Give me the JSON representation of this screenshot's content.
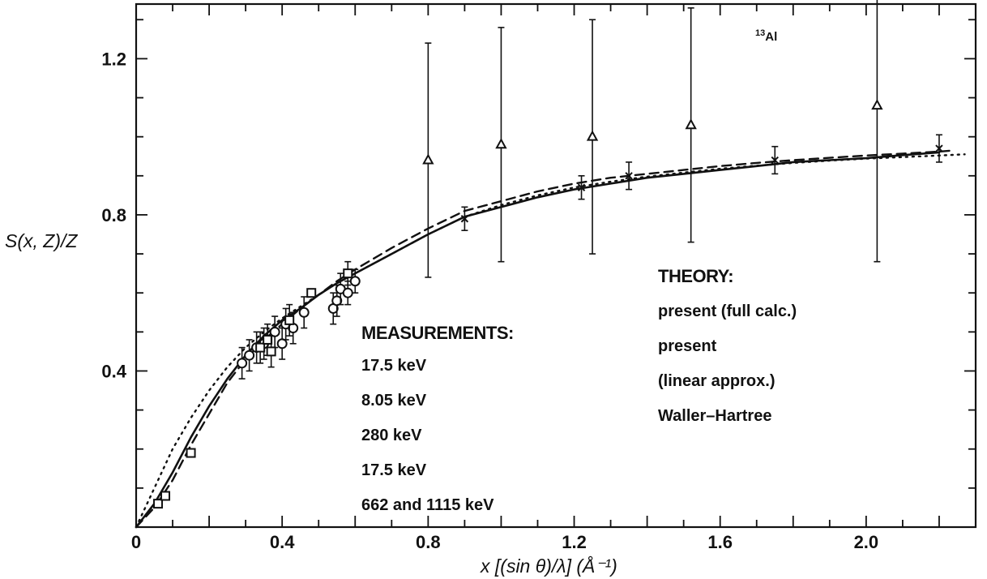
{
  "chart_data": {
    "type": "scatter",
    "title": "",
    "annotation": {
      "superscript": "13",
      "element": "Al"
    },
    "xlabel": "x [(sin θ)/λ]  (Å⁻¹)",
    "ylabel": "S(x, Z)/Z",
    "xlim": [
      0,
      2.3
    ],
    "ylim": [
      0,
      1.34
    ],
    "x_ticks": [
      0,
      0.4,
      0.8,
      1.2,
      1.6,
      2.0
    ],
    "x_tick_labels": [
      "0",
      "0.4",
      "0.8",
      "1.2",
      "1.6",
      "2.0"
    ],
    "y_ticks": [
      0.4,
      0.8,
      1.2
    ],
    "y_tick_labels": [
      "0.4",
      "0.8",
      "1.2"
    ],
    "legend": {
      "measurements_title": "MEASUREMENTS:",
      "measurements": [
        "17.5 keV",
        "8.05 keV",
        "280 keV",
        "17.5 keV",
        "662 and 1115 keV"
      ],
      "theory_title": "THEORY:",
      "theory": [
        "present (full calc.)",
        "present",
        "(linear approx.)",
        "Waller–Hartree"
      ]
    },
    "series": [
      {
        "name": "present (full calc.)",
        "style": "solid",
        "x": [
          0,
          0.05,
          0.1,
          0.15,
          0.2,
          0.25,
          0.3,
          0.35,
          0.4,
          0.45,
          0.5,
          0.55,
          0.6,
          0.7,
          0.8,
          0.9,
          1.0,
          1.1,
          1.2,
          1.3,
          1.4,
          1.5,
          1.6,
          1.7,
          1.8,
          1.9,
          2.0,
          2.1,
          2.2
        ],
        "y": [
          0,
          0.06,
          0.14,
          0.23,
          0.31,
          0.38,
          0.44,
          0.49,
          0.53,
          0.56,
          0.595,
          0.625,
          0.65,
          0.7,
          0.75,
          0.795,
          0.82,
          0.845,
          0.865,
          0.88,
          0.895,
          0.905,
          0.915,
          0.925,
          0.935,
          0.94,
          0.945,
          0.953,
          0.96
        ]
      },
      {
        "name": "present (linear approx.)",
        "style": "dashed",
        "x": [
          0,
          0.05,
          0.1,
          0.15,
          0.2,
          0.25,
          0.3,
          0.35,
          0.4,
          0.45,
          0.5,
          0.55,
          0.6,
          0.7,
          0.8,
          0.9,
          1.0,
          1.1,
          1.2,
          1.3,
          1.4,
          1.5,
          1.6,
          1.7,
          1.8,
          1.9,
          2.0,
          2.1,
          2.2,
          2.24
        ],
        "y": [
          0,
          0.05,
          0.12,
          0.21,
          0.29,
          0.37,
          0.43,
          0.48,
          0.52,
          0.56,
          0.595,
          0.63,
          0.66,
          0.715,
          0.765,
          0.81,
          0.835,
          0.86,
          0.88,
          0.895,
          0.905,
          0.915,
          0.925,
          0.933,
          0.94,
          0.946,
          0.952,
          0.957,
          0.962,
          0.965
        ]
      },
      {
        "name": "Waller–Hartree",
        "style": "dotted",
        "x": [
          0,
          0.05,
          0.1,
          0.15,
          0.2,
          0.25,
          0.3,
          0.35,
          0.4,
          0.45,
          0.5,
          0.55,
          0.6,
          0.7,
          0.8,
          0.9,
          1.0,
          1.1,
          1.2,
          1.3,
          1.4,
          1.5,
          1.6,
          1.7,
          1.8,
          1.9,
          2.0,
          2.1,
          2.2,
          2.27
        ],
        "y": [
          0,
          0.1,
          0.2,
          0.28,
          0.35,
          0.41,
          0.46,
          0.5,
          0.535,
          0.565,
          0.595,
          0.625,
          0.65,
          0.7,
          0.75,
          0.795,
          0.825,
          0.85,
          0.87,
          0.885,
          0.898,
          0.908,
          0.918,
          0.926,
          0.933,
          0.939,
          0.944,
          0.948,
          0.952,
          0.955
        ]
      }
    ],
    "points": [
      {
        "measurement": "17.5 keV (circles)",
        "marker": "circle",
        "data": [
          {
            "x": 0.29,
            "y": 0.42,
            "err": 0.04
          },
          {
            "x": 0.31,
            "y": 0.44,
            "err": 0.04
          },
          {
            "x": 0.33,
            "y": 0.46,
            "err": 0.04
          },
          {
            "x": 0.35,
            "y": 0.47,
            "err": 0.04
          },
          {
            "x": 0.38,
            "y": 0.5,
            "err": 0.04
          },
          {
            "x": 0.4,
            "y": 0.47,
            "err": 0.04
          },
          {
            "x": 0.41,
            "y": 0.52,
            "err": 0.04
          },
          {
            "x": 0.43,
            "y": 0.51,
            "err": 0.04
          },
          {
            "x": 0.46,
            "y": 0.55,
            "err": 0.04
          },
          {
            "x": 0.54,
            "y": 0.56,
            "err": 0.04
          },
          {
            "x": 0.55,
            "y": 0.58,
            "err": 0.04
          },
          {
            "x": 0.56,
            "y": 0.61,
            "err": 0.04
          },
          {
            "x": 0.58,
            "y": 0.6,
            "err": 0.03
          },
          {
            "x": 0.6,
            "y": 0.63,
            "err": 0.03
          }
        ]
      },
      {
        "measurement": "8.05 keV (squares)",
        "marker": "square",
        "data": [
          {
            "x": 0.06,
            "y": 0.06
          },
          {
            "x": 0.08,
            "y": 0.08
          },
          {
            "x": 0.15,
            "y": 0.19
          },
          {
            "x": 0.34,
            "y": 0.46,
            "err": 0.04
          },
          {
            "x": 0.36,
            "y": 0.48,
            "err": 0.04
          },
          {
            "x": 0.37,
            "y": 0.45,
            "err": 0.04
          },
          {
            "x": 0.42,
            "y": 0.53,
            "err": 0.04
          },
          {
            "x": 0.48,
            "y": 0.6
          },
          {
            "x": 0.58,
            "y": 0.65,
            "err": 0.03
          }
        ]
      },
      {
        "measurement": "280 keV (crosses)",
        "marker": "x",
        "data": [
          {
            "x": 0.9,
            "y": 0.79,
            "err": 0.03
          },
          {
            "x": 1.22,
            "y": 0.87,
            "err": 0.03
          },
          {
            "x": 1.35,
            "y": 0.9,
            "err": 0.035
          },
          {
            "x": 1.75,
            "y": 0.94,
            "err": 0.035
          },
          {
            "x": 2.2,
            "y": 0.97,
            "err": 0.035
          }
        ]
      },
      {
        "measurement": "662 and 1115 keV (triangles)",
        "marker": "triangle",
        "data": [
          {
            "x": 0.8,
            "y": 0.94,
            "err": 0.3
          },
          {
            "x": 1.0,
            "y": 0.98,
            "err": 0.3
          },
          {
            "x": 1.25,
            "y": 1.0,
            "err": 0.3
          },
          {
            "x": 1.52,
            "y": 1.03,
            "err": 0.3
          },
          {
            "x": 2.03,
            "y": 1.08,
            "err": 0.4
          }
        ]
      }
    ]
  }
}
